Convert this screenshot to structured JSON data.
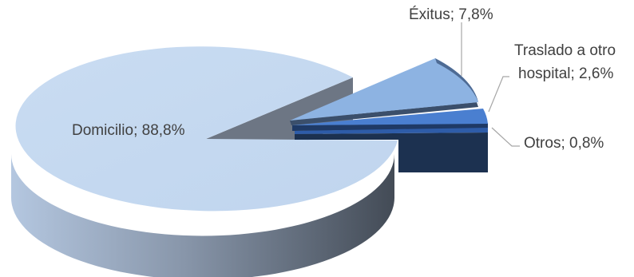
{
  "chart_data": {
    "type": "pie",
    "style": "3d-exploded",
    "title": "",
    "slices": [
      {
        "label": "Domicilio",
        "value": 88.8,
        "text": "Domicilio; 88,8%",
        "top_color": "#c5d9f1",
        "side_color": "#5a6472"
      },
      {
        "label": "Éxitus",
        "value": 7.8,
        "text": "Éxitus; 7,8%",
        "top_color": "#8db3e2",
        "side_color": "#3b4f6b"
      },
      {
        "label": "Traslado a otro hospital",
        "value": 2.6,
        "text_lines": [
          "Traslado a otro",
          "hospital; 2,6%"
        ],
        "top_color": "#4a7fd0",
        "side_color": "#1f3a66"
      },
      {
        "label": "Otros",
        "value": 0.8,
        "text": "Otros; 0,8%",
        "top_color": "#2e5ca8",
        "side_color": "#1c3150"
      }
    ]
  }
}
